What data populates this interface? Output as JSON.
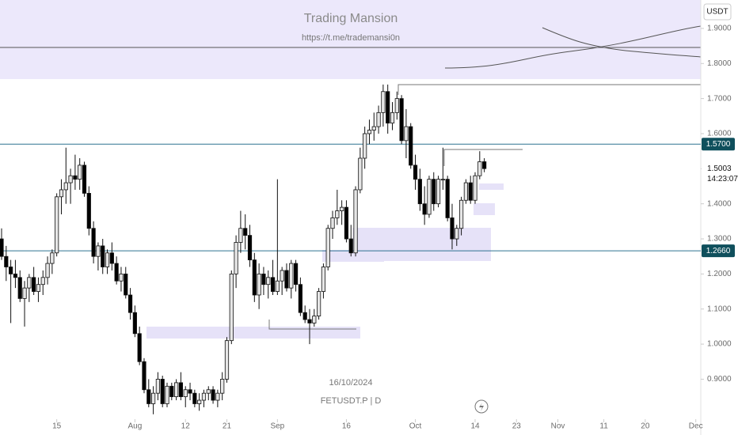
{
  "chart_data": {
    "type": "candlestick",
    "title": "Trading Mansion",
    "subtitle": "https://t.me/trademansi0n",
    "date_label": "16/10/2024",
    "symbol_label": "FETUSDT.P | D",
    "currency": "USDT",
    "countdown": "14:23:07",
    "up_color": "#e6e6e6",
    "down_color": "#000000",
    "x": [
      "2024-07-03",
      "2024-07-04",
      "2024-07-05",
      "2024-07-06",
      "2024-07-07",
      "2024-07-08",
      "2024-07-09",
      "2024-07-10",
      "2024-07-11",
      "2024-07-12",
      "2024-07-13",
      "2024-07-14",
      "2024-07-15",
      "2024-07-16",
      "2024-07-17",
      "2024-07-18",
      "2024-07-19",
      "2024-07-20",
      "2024-07-21",
      "2024-07-22",
      "2024-07-23",
      "2024-07-24",
      "2024-07-25",
      "2024-07-26",
      "2024-07-27",
      "2024-07-28",
      "2024-07-29",
      "2024-07-30",
      "2024-07-31",
      "2024-08-01",
      "2024-08-02",
      "2024-08-03",
      "2024-08-04",
      "2024-08-05",
      "2024-08-06",
      "2024-08-07",
      "2024-08-08",
      "2024-08-09",
      "2024-08-10",
      "2024-08-11",
      "2024-08-12",
      "2024-08-13",
      "2024-08-14",
      "2024-08-15",
      "2024-08-16",
      "2024-08-17",
      "2024-08-18",
      "2024-08-19",
      "2024-08-20",
      "2024-08-21",
      "2024-08-22",
      "2024-08-23",
      "2024-08-24",
      "2024-08-25",
      "2024-08-26",
      "2024-08-27",
      "2024-08-28",
      "2024-08-29",
      "2024-08-30",
      "2024-08-31",
      "2024-09-01",
      "2024-09-02",
      "2024-09-03",
      "2024-09-04",
      "2024-09-05",
      "2024-09-06",
      "2024-09-07",
      "2024-09-08",
      "2024-09-09",
      "2024-09-10",
      "2024-09-11",
      "2024-09-12",
      "2024-09-13",
      "2024-09-14",
      "2024-09-15",
      "2024-09-16",
      "2024-09-17",
      "2024-09-18",
      "2024-09-19",
      "2024-09-20",
      "2024-09-21",
      "2024-09-22",
      "2024-09-23",
      "2024-09-24",
      "2024-09-25",
      "2024-09-26",
      "2024-09-27",
      "2024-09-28",
      "2024-09-29",
      "2024-09-30",
      "2024-10-01",
      "2024-10-02",
      "2024-10-03",
      "2024-10-04",
      "2024-10-05",
      "2024-10-06",
      "2024-10-07",
      "2024-10-08",
      "2024-10-09",
      "2024-10-10",
      "2024-10-11",
      "2024-10-12",
      "2024-10-13",
      "2024-10-14",
      "2024-10-15",
      "2024-10-16"
    ],
    "open": [
      1.3,
      1.25,
      1.22,
      1.2,
      1.19,
      1.13,
      1.16,
      1.19,
      1.15,
      1.17,
      1.19,
      1.23,
      1.26,
      1.42,
      1.44,
      1.46,
      1.48,
      1.47,
      1.51,
      1.43,
      1.33,
      1.25,
      1.28,
      1.22,
      1.26,
      1.23,
      1.18,
      1.2,
      1.14,
      1.09,
      1.03,
      0.95,
      0.87,
      0.83,
      0.86,
      0.9,
      0.83,
      0.88,
      0.85,
      0.89,
      0.85,
      0.87,
      0.86,
      0.83,
      0.84,
      0.86,
      0.87,
      0.84,
      0.86,
      0.9,
      1.01,
      1.2,
      1.29,
      1.33,
      1.31,
      1.24,
      1.14,
      1.2,
      1.17,
      1.19,
      1.15,
      1.18,
      1.21,
      1.16,
      1.23,
      1.17,
      1.09,
      1.07,
      1.06,
      1.08,
      1.15,
      1.22,
      1.33,
      1.36,
      1.38,
      1.39,
      1.3,
      1.26,
      1.44,
      1.53,
      1.6,
      1.61,
      1.62,
      1.66,
      1.72,
      1.63,
      1.66,
      1.7,
      1.58,
      1.62,
      1.51,
      1.47,
      1.4,
      1.37,
      1.47,
      1.4,
      1.47,
      1.47,
      1.36,
      1.3,
      1.33,
      1.41,
      1.46,
      1.41,
      1.48,
      1.52
    ],
    "high": [
      1.33,
      1.28,
      1.24,
      1.24,
      1.21,
      1.18,
      1.2,
      1.22,
      1.19,
      1.21,
      1.25,
      1.27,
      1.43,
      1.47,
      1.56,
      1.5,
      1.54,
      1.53,
      1.52,
      1.45,
      1.35,
      1.29,
      1.3,
      1.27,
      1.29,
      1.25,
      1.22,
      1.22,
      1.16,
      1.11,
      1.05,
      0.96,
      0.9,
      0.88,
      0.92,
      0.91,
      0.89,
      0.89,
      0.9,
      0.92,
      0.88,
      0.89,
      0.87,
      0.86,
      0.87,
      0.88,
      0.88,
      0.87,
      0.92,
      1.02,
      1.21,
      1.31,
      1.38,
      1.37,
      1.34,
      1.26,
      1.23,
      1.22,
      1.21,
      1.24,
      1.47,
      1.22,
      1.23,
      1.24,
      1.24,
      1.19,
      1.11,
      1.1,
      1.1,
      1.16,
      1.23,
      1.34,
      1.38,
      1.44,
      1.41,
      1.41,
      1.34,
      1.45,
      1.56,
      1.62,
      1.64,
      1.66,
      1.68,
      1.74,
      1.74,
      1.69,
      1.72,
      1.71,
      1.67,
      1.63,
      1.54,
      1.5,
      1.45,
      1.48,
      1.49,
      1.48,
      1.56,
      1.48,
      1.4,
      1.34,
      1.42,
      1.47,
      1.48,
      1.49,
      1.55,
      1.53
    ],
    "low": [
      1.24,
      1.18,
      1.06,
      1.16,
      1.12,
      1.05,
      1.12,
      1.14,
      1.12,
      1.14,
      1.17,
      1.2,
      1.25,
      1.37,
      1.4,
      1.4,
      1.44,
      1.44,
      1.42,
      1.31,
      1.23,
      1.21,
      1.2,
      1.2,
      1.21,
      1.17,
      1.15,
      1.13,
      1.07,
      1.02,
      0.94,
      0.86,
      0.82,
      0.8,
      0.84,
      0.82,
      0.82,
      0.84,
      0.84,
      0.84,
      0.82,
      0.84,
      0.82,
      0.81,
      0.82,
      0.84,
      0.83,
      0.82,
      0.84,
      0.89,
      1.0,
      1.16,
      1.26,
      1.27,
      1.22,
      1.12,
      1.1,
      1.14,
      1.13,
      1.14,
      1.14,
      1.14,
      1.15,
      1.13,
      1.15,
      1.08,
      1.06,
      1.0,
      1.05,
      1.07,
      1.13,
      1.21,
      1.3,
      1.34,
      1.34,
      1.29,
      1.25,
      1.25,
      1.43,
      1.5,
      1.57,
      1.58,
      1.6,
      1.62,
      1.6,
      1.61,
      1.64,
      1.57,
      1.53,
      1.5,
      1.44,
      1.38,
      1.34,
      1.36,
      1.38,
      1.39,
      1.44,
      1.35,
      1.27,
      1.28,
      1.31,
      1.4,
      1.4,
      1.4,
      1.47,
      1.49
    ],
    "close": [
      1.25,
      1.22,
      1.2,
      1.19,
      1.13,
      1.16,
      1.19,
      1.15,
      1.17,
      1.19,
      1.23,
      1.26,
      1.42,
      1.44,
      1.46,
      1.48,
      1.47,
      1.51,
      1.43,
      1.33,
      1.25,
      1.28,
      1.22,
      1.26,
      1.23,
      1.18,
      1.2,
      1.14,
      1.09,
      1.03,
      0.95,
      0.87,
      0.83,
      0.86,
      0.9,
      0.83,
      0.88,
      0.85,
      0.89,
      0.85,
      0.87,
      0.86,
      0.83,
      0.84,
      0.86,
      0.87,
      0.84,
      0.86,
      0.9,
      1.01,
      1.2,
      1.29,
      1.33,
      1.31,
      1.24,
      1.14,
      1.2,
      1.17,
      1.19,
      1.15,
      1.18,
      1.21,
      1.16,
      1.23,
      1.17,
      1.09,
      1.07,
      1.06,
      1.08,
      1.15,
      1.22,
      1.33,
      1.36,
      1.38,
      1.39,
      1.3,
      1.26,
      1.44,
      1.53,
      1.6,
      1.61,
      1.62,
      1.66,
      1.72,
      1.63,
      1.66,
      1.7,
      1.58,
      1.62,
      1.51,
      1.47,
      1.4,
      1.37,
      1.47,
      1.4,
      1.47,
      1.47,
      1.36,
      1.3,
      1.33,
      1.41,
      1.46,
      1.41,
      1.48,
      1.52,
      1.5003
    ],
    "xlim": [
      "2024-07-03",
      "2024-12-02"
    ],
    "xticks": [
      {
        "value": "2024-07-15",
        "label": "15"
      },
      {
        "value": "2024-08-01",
        "label": "Aug"
      },
      {
        "value": "2024-08-12",
        "label": "12"
      },
      {
        "value": "2024-08-21",
        "label": "21"
      },
      {
        "value": "2024-09-01",
        "label": "Sep"
      },
      {
        "value": "2024-09-16",
        "label": "16"
      },
      {
        "value": "2024-10-01",
        "label": "Oct"
      },
      {
        "value": "2024-10-14",
        "label": "14"
      },
      {
        "value": "2024-10-23",
        "label": "23"
      },
      {
        "value": "2024-11-01",
        "label": "Nov"
      },
      {
        "value": "2024-11-11",
        "label": "11"
      },
      {
        "value": "2024-11-20",
        "label": "20"
      },
      {
        "value": "2024-12-01",
        "label": "Dec"
      }
    ],
    "ylim": [
      0.786,
      1.981
    ],
    "yticks": [
      {
        "value": 0.9,
        "label": "0.9000"
      },
      {
        "value": 1.0,
        "label": "1.0000"
      },
      {
        "value": 1.1,
        "label": "1.1000"
      },
      {
        "value": 1.2,
        "label": "1.2000"
      },
      {
        "value": 1.3,
        "label": "1.3000"
      },
      {
        "value": 1.4,
        "label": "1.4000"
      },
      {
        "value": 1.5,
        "label": "1.5000"
      },
      {
        "value": 1.6,
        "label": "1.6000"
      },
      {
        "value": 1.7,
        "label": "1.7000"
      },
      {
        "value": 1.8,
        "label": "1.8000"
      },
      {
        "value": 1.9,
        "label": "1.9000"
      }
    ],
    "hlines": [
      {
        "value": 1.57,
        "label": "1.5700"
      },
      {
        "value": 1.266,
        "label": "1.2660"
      }
    ],
    "hline_color": "#2f7391",
    "tag_color": "#0f4f5c"
  }
}
